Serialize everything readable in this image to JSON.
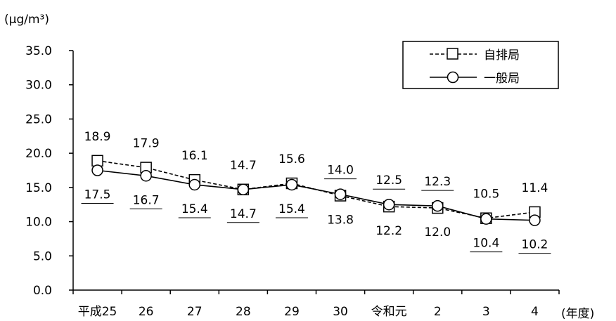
{
  "chart_data": {
    "type": "line",
    "unit_label": "(μg/m³)",
    "x_unit_label": "(年度)",
    "categories": [
      "平成25",
      "26",
      "27",
      "28",
      "29",
      "30",
      "令和元",
      "2",
      "3",
      "4"
    ],
    "y_ticks": [
      "0.0",
      "5.0",
      "10.0",
      "15.0",
      "20.0",
      "25.0",
      "30.0",
      "35.0"
    ],
    "ylim": [
      0,
      35
    ],
    "grid": false,
    "legend_position": "top-right",
    "series": [
      {
        "name": "自排局",
        "marker": "square",
        "line_style": "dashed",
        "values": [
          18.9,
          17.9,
          16.1,
          14.7,
          15.6,
          13.8,
          12.2,
          12.0,
          10.5,
          11.4
        ],
        "labels": [
          "18.9",
          "17.9",
          "16.1",
          "14.7",
          "15.6",
          "13.8",
          "12.2",
          "12.0",
          "10.5",
          "11.4"
        ]
      },
      {
        "name": "一般局",
        "marker": "circle",
        "line_style": "solid",
        "values": [
          17.5,
          16.7,
          15.4,
          14.7,
          15.4,
          14.0,
          12.5,
          12.3,
          10.4,
          10.2
        ],
        "labels": [
          "17.5",
          "16.7",
          "15.4",
          "14.7",
          "15.4",
          "14.0",
          "12.5",
          "12.3",
          "10.4",
          "10.2"
        ]
      }
    ],
    "colors": {
      "line": "#000000",
      "marker_fill": "#ffffff"
    }
  }
}
